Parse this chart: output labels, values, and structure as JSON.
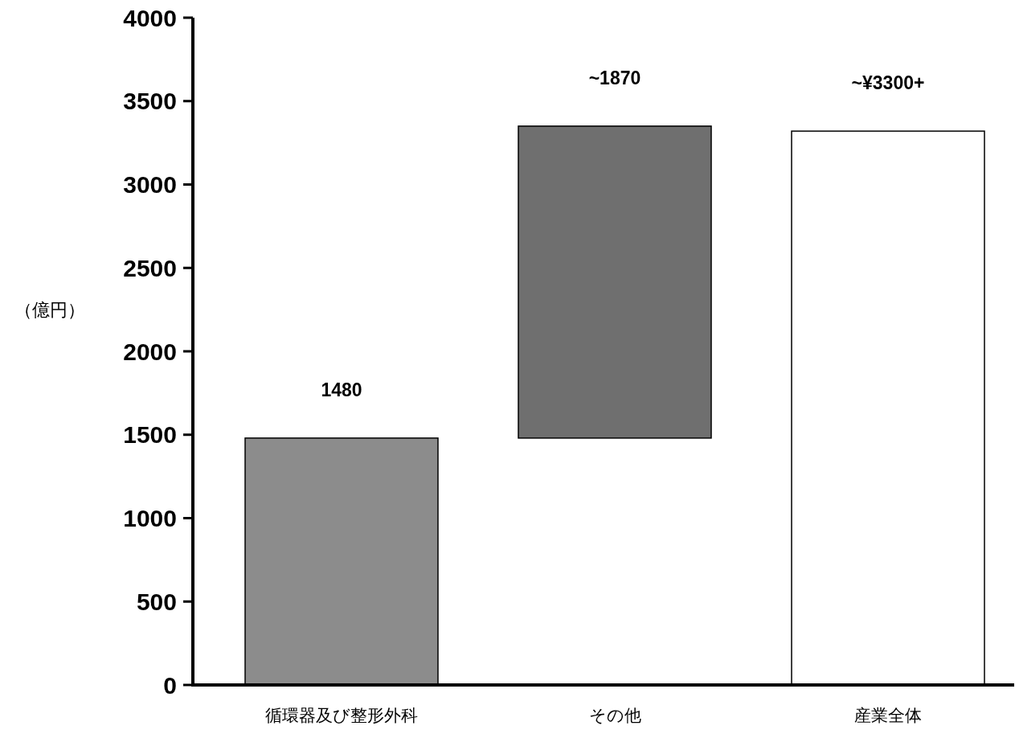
{
  "chart_data": {
    "type": "bar",
    "ylabel": "（億円）",
    "categories": [
      "循環器及び整形外科",
      "その他",
      "産業全体"
    ],
    "values": [
      1480,
      1870,
      3320
    ],
    "base": [
      0,
      1480,
      0
    ],
    "colors": [
      "#8c8c8c",
      "#6f6f6f",
      "#ffffff"
    ],
    "value_labels": [
      "1480",
      "~1870",
      "~¥3300+"
    ],
    "ylim": [
      0,
      4000
    ],
    "yticks": [
      0,
      500,
      1000,
      1500,
      2000,
      2500,
      3000,
      3500,
      4000
    ]
  }
}
